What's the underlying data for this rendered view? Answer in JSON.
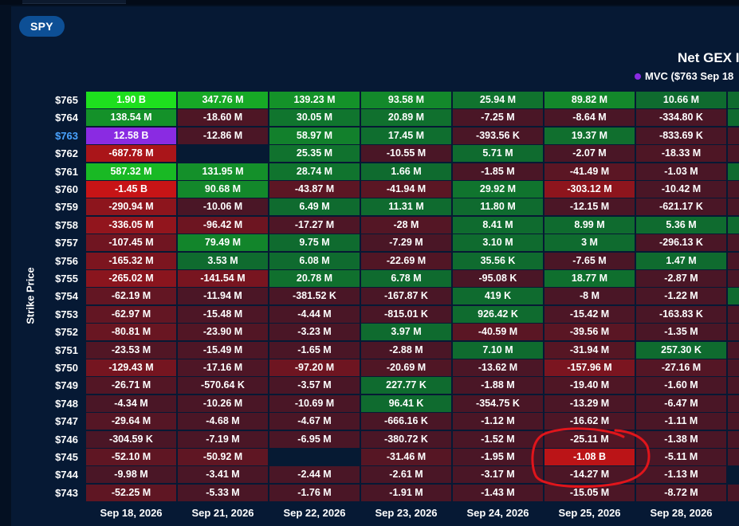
{
  "ticker": "SPY",
  "chart_data": {
    "type": "heatmap",
    "title": "Net GEX I",
    "legend": "MVC ($763 Sep 18",
    "ylabel": "Strike Price",
    "highlight_strike": "$763",
    "x": [
      "Sep 18, 2026",
      "Sep 21, 2026",
      "Sep 22, 2026",
      "Sep 23, 2026",
      "Sep 24, 2026",
      "Sep 25, 2026",
      "Sep 28, 2026"
    ],
    "y": [
      "$765",
      "$764",
      "$763",
      "$762",
      "$761",
      "$760",
      "$759",
      "$758",
      "$757",
      "$756",
      "$755",
      "$754",
      "$753",
      "$752",
      "$751",
      "$750",
      "$749",
      "$748",
      "$747",
      "$746",
      "$745",
      "$744",
      "$743"
    ],
    "values": [
      [
        "1.90 B",
        "347.76 M",
        "139.23 M",
        "93.58 M",
        "25.94 M",
        "89.82 M",
        "10.66 M"
      ],
      [
        "138.54 M",
        "-18.60 M",
        "30.05 M",
        "20.89 M",
        "-7.25 M",
        "-8.64 M",
        "-334.80 K"
      ],
      [
        "12.58 B",
        "-12.86 M",
        "58.97 M",
        "17.45 M",
        "-393.56 K",
        "19.37 M",
        "-833.69 K"
      ],
      [
        "-687.78 M",
        "",
        "25.35 M",
        "-10.55 M",
        "5.71 M",
        "-2.07 M",
        "-18.33 M"
      ],
      [
        "587.32 M",
        "131.95 M",
        "28.74 M",
        "1.66 M",
        "-1.85 M",
        "-41.49 M",
        "-1.03 M"
      ],
      [
        "-1.45 B",
        "90.68 M",
        "-43.87 M",
        "-41.94 M",
        "29.92 M",
        "-303.12 M",
        "-10.42 M"
      ],
      [
        "-290.94 M",
        "-10.06 M",
        "6.49 M",
        "11.31 M",
        "11.80 M",
        "-12.15 M",
        "-621.17 K"
      ],
      [
        "-336.05 M",
        "-96.42 M",
        "-17.27 M",
        "-28 M",
        "8.41 M",
        "8.99 M",
        "5.36 M"
      ],
      [
        "-107.45 M",
        "79.49 M",
        "9.75 M",
        "-7.29 M",
        "3.10 M",
        "3 M",
        "-296.13 K"
      ],
      [
        "-165.32 M",
        "3.53 M",
        "6.08 M",
        "-22.69 M",
        "35.56 K",
        "-7.65 M",
        "1.47 M"
      ],
      [
        "-265.02 M",
        "-141.54 M",
        "20.78 M",
        "6.78 M",
        "-95.08 K",
        "18.77 M",
        "-2.87 M"
      ],
      [
        "-62.19 M",
        "-11.94 M",
        "-381.52 K",
        "-167.87 K",
        "419 K",
        "-8 M",
        "-1.22 M"
      ],
      [
        "-62.97 M",
        "-15.48 M",
        "-4.44 M",
        "-815.01 K",
        "926.42 K",
        "-15.42 M",
        "-163.83 K"
      ],
      [
        "-80.81 M",
        "-23.90 M",
        "-3.23 M",
        "3.97 M",
        "-40.59 M",
        "-39.56 M",
        "-1.35 M"
      ],
      [
        "-23.53 M",
        "-15.49 M",
        "-1.65 M",
        "-2.88 M",
        "7.10 M",
        "-31.94 M",
        "257.30 K"
      ],
      [
        "-129.43 M",
        "-17.16 M",
        "-97.20 M",
        "-20.69 M",
        "-13.62 M",
        "-157.96 M",
        "-27.16 M"
      ],
      [
        "-26.71 M",
        "-570.64 K",
        "-3.57 M",
        "227.77 K",
        "-1.88 M",
        "-19.40 M",
        "-1.60 M"
      ],
      [
        "-4.34 M",
        "-10.26 M",
        "-10.69 M",
        "96.41 K",
        "-354.75 K",
        "-13.29 M",
        "-6.47 M"
      ],
      [
        "-29.64 M",
        "-4.68 M",
        "-4.67 M",
        "-666.16 K",
        "-1.12 M",
        "-16.62 M",
        "-1.11 M"
      ],
      [
        "-304.59 K",
        "-7.19 M",
        "-6.95 M",
        "-380.72 K",
        "-1.52 M",
        "-25.11 M",
        "-1.38 M"
      ],
      [
        "-52.10 M",
        "-50.92 M",
        "",
        "-31.46 M",
        "-1.95 M",
        "-1.08 B",
        "-5.11 M"
      ],
      [
        "-9.98 M",
        "-3.41 M",
        "-2.44 M",
        "-2.61 M",
        "-3.17 M",
        "-14.27 M",
        "-1.13 M"
      ],
      [
        "-52.25 M",
        "-5.33 M",
        "-1.76 M",
        "-1.91 M",
        "-1.43 M",
        "-15.05 M",
        "-8.72 M"
      ]
    ],
    "colors": {
      "strong_positive": "#1ee11e",
      "positive": "#0f6b2f",
      "negative": "#4a1626",
      "strong_negative": "#d41414",
      "max_value": "#8a2be2",
      "empty": "#061a33"
    },
    "annotation": "red hand-drawn circle around Sep 25, 2026 cells at $746–$744"
  }
}
